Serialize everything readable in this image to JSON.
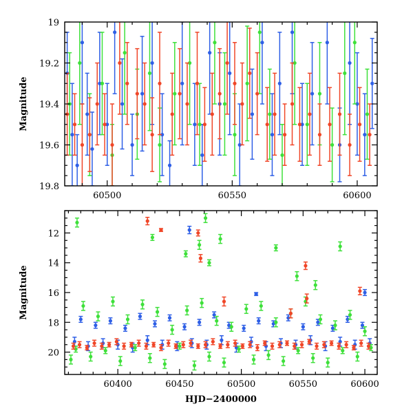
{
  "chart_data": [
    {
      "type": "scatter",
      "panel": "top",
      "title": "",
      "xlabel": "",
      "ylabel": "Magnitude",
      "xlim": [
        60483,
        60608
      ],
      "ylim": [
        19.8,
        19.0
      ],
      "y_inverted": true,
      "xticks": [
        60500,
        60550,
        60600
      ],
      "xtick_labels": [
        "60500",
        "60550",
        "60600"
      ],
      "yticks": [
        19.0,
        19.2,
        19.4,
        19.6,
        19.8
      ],
      "ytick_labels": [
        "19",
        "19.2",
        "19.4",
        "19.6",
        "19.8"
      ],
      "error_bars": true,
      "grid": false,
      "legend": "none",
      "series_colors": [
        "#2e5fe6",
        "#3ee03a",
        "#f04628"
      ],
      "series": [
        {
          "color": "#2e5fe6",
          "x": [
            60484,
            60486,
            60488,
            60490,
            60492,
            60494,
            60497,
            60500,
            60503,
            60506,
            60510,
            60514,
            60518,
            60522,
            60525,
            60530,
            60535,
            60538,
            60541,
            60545,
            60549,
            60553,
            60558,
            60562,
            60566,
            60569,
            60574,
            60578,
            60582,
            60588,
            60593,
            60597,
            60600,
            60603,
            60606
          ],
          "y": [
            19.25,
            19.55,
            19.7,
            19.1,
            19.45,
            19.62,
            19.3,
            19.5,
            19.05,
            19.4,
            19.6,
            19.35,
            19.2,
            19.55,
            19.7,
            19.3,
            19.5,
            19.65,
            19.15,
            19.4,
            19.25,
            19.6,
            19.45,
            19.1,
            19.55,
            19.3,
            19.05,
            19.5,
            19.35,
            19.1,
            19.6,
            19.2,
            19.4,
            19.55,
            19.3
          ],
          "yerr": [
            0.2,
            0.25,
            0.15,
            0.3,
            0.2,
            0.18,
            0.25,
            0.2,
            0.3,
            0.22,
            0.15,
            0.28,
            0.3,
            0.2,
            0.12,
            0.3,
            0.2,
            0.15,
            0.3,
            0.25,
            0.3,
            0.2,
            0.22,
            0.3,
            0.2,
            0.25,
            0.3,
            0.2,
            0.25,
            0.3,
            0.18,
            0.3,
            0.25,
            0.2,
            0.22
          ]
        },
        {
          "color": "#3ee03a",
          "x": [
            60485,
            60489,
            60493,
            60498,
            60502,
            60507,
            60512,
            60517,
            60521,
            60527,
            60533,
            60537,
            60543,
            60547,
            60551,
            60556,
            60561,
            60565,
            60570,
            60575,
            60580,
            60585,
            60590,
            60595,
            60599,
            60604
          ],
          "y": [
            19.4,
            19.2,
            19.55,
            19.3,
            19.65,
            19.15,
            19.45,
            19.25,
            19.6,
            19.35,
            19.2,
            19.5,
            19.1,
            19.4,
            19.55,
            19.3,
            19.05,
            19.45,
            19.65,
            19.2,
            19.5,
            19.35,
            19.6,
            19.25,
            19.1,
            19.45
          ],
          "yerr": [
            0.25,
            0.3,
            0.2,
            0.25,
            0.15,
            0.3,
            0.22,
            0.28,
            0.18,
            0.25,
            0.3,
            0.2,
            0.3,
            0.25,
            0.2,
            0.28,
            0.3,
            0.22,
            0.15,
            0.3,
            0.2,
            0.25,
            0.18,
            0.3,
            0.3,
            0.22
          ]
        },
        {
          "color": "#f04628",
          "x": [
            60484,
            60487,
            60490,
            60493,
            60496,
            60499,
            60502,
            60505,
            60508,
            60512,
            60515,
            60518,
            60521,
            60526,
            60529,
            60532,
            60536,
            60539,
            60542,
            60545,
            60548,
            60551,
            60554,
            60557,
            60560,
            60564,
            60567,
            60571,
            60574,
            60577,
            60581,
            60585,
            60589,
            60593,
            60597,
            60601,
            60605
          ],
          "y": [
            19.45,
            19.5,
            19.6,
            19.55,
            19.4,
            19.5,
            19.6,
            19.2,
            19.3,
            19.35,
            19.4,
            19.55,
            19.3,
            19.45,
            19.35,
            19.4,
            19.3,
            19.5,
            19.45,
            19.35,
            19.2,
            19.3,
            19.4,
            19.25,
            19.35,
            19.5,
            19.45,
            19.55,
            19.4,
            19.5,
            19.45,
            19.55,
            19.5,
            19.45,
            19.6,
            19.5,
            19.55
          ],
          "yerr": [
            0.2,
            0.15,
            0.2,
            0.18,
            0.2,
            0.15,
            0.2,
            0.25,
            0.2,
            0.22,
            0.2,
            0.18,
            0.25,
            0.2,
            0.22,
            0.2,
            0.25,
            0.18,
            0.2,
            0.22,
            0.25,
            0.2,
            0.2,
            0.22,
            0.2,
            0.18,
            0.2,
            0.15,
            0.2,
            0.18,
            0.2,
            0.15,
            0.18,
            0.2,
            0.15,
            0.18,
            0.15
          ]
        }
      ]
    },
    {
      "type": "scatter",
      "panel": "bottom",
      "title": "",
      "xlabel": "HJD−2400000",
      "ylabel": "Magnitude",
      "xlim": [
        60357,
        60610
      ],
      "ylim": [
        21.5,
        10.5
      ],
      "y_inverted": true,
      "xticks": [
        60400,
        60450,
        60500,
        60550,
        60600
      ],
      "xtick_labels": [
        "60400",
        "60450",
        "60500",
        "60550",
        "60600"
      ],
      "yticks": [
        12,
        14,
        16,
        18,
        20
      ],
      "ytick_labels": [
        "12",
        "14",
        "16",
        "18",
        "20"
      ],
      "error_bars": true,
      "grid": false,
      "legend": "none",
      "series": [
        {
          "color": "#2e5fe6",
          "x": [
            60365,
            60370,
            60376,
            60382,
            60388,
            60394,
            60400,
            60406,
            60412,
            60418,
            60424,
            60430,
            60436,
            60442,
            60448,
            60454,
            60460,
            60466,
            60472,
            60478,
            60484,
            60490,
            60496,
            60502,
            60508,
            60514,
            60520,
            60526,
            60532,
            60538,
            60544,
            60550,
            60556,
            60562,
            60568,
            60574,
            60580,
            60586,
            60592,
            60598,
            60604,
            60458,
            60512,
            60600
          ],
          "y": [
            19.3,
            17.8,
            19.6,
            18.2,
            19.4,
            17.9,
            19.5,
            18.4,
            19.7,
            17.6,
            19.2,
            18.1,
            19.5,
            17.7,
            19.6,
            18.3,
            19.4,
            18.0,
            19.5,
            17.5,
            19.2,
            18.2,
            19.7,
            18.4,
            19.3,
            17.9,
            19.6,
            18.1,
            19.4,
            17.7,
            19.5,
            18.3,
            19.2,
            18.0,
            19.6,
            18.4,
            19.3,
            17.8,
            19.5,
            18.2,
            19.4,
            11.8,
            16.1,
            16.0
          ],
          "yerr": [
            0.3,
            0.2,
            0.3,
            0.2,
            0.3,
            0.2,
            0.3,
            0.2,
            0.3,
            0.2,
            0.3,
            0.2,
            0.3,
            0.2,
            0.3,
            0.2,
            0.3,
            0.2,
            0.3,
            0.2,
            0.3,
            0.2,
            0.3,
            0.2,
            0.3,
            0.2,
            0.3,
            0.2,
            0.3,
            0.2,
            0.3,
            0.2,
            0.3,
            0.2,
            0.3,
            0.2,
            0.3,
            0.2,
            0.3,
            0.2,
            0.3,
            0.25,
            0.1,
            0.2
          ]
        },
        {
          "color": "#3ee03a",
          "x": [
            60362,
            60366,
            60372,
            60378,
            60384,
            60390,
            60396,
            60402,
            60408,
            60414,
            60420,
            60426,
            60432,
            60438,
            60444,
            60450,
            60456,
            60462,
            60468,
            60474,
            60480,
            60486,
            60492,
            60498,
            60504,
            60510,
            60516,
            60522,
            60528,
            60534,
            60540,
            60546,
            60552,
            60558,
            60564,
            60570,
            60576,
            60582,
            60588,
            60594,
            60600,
            60605,
            60367,
            60428,
            60455,
            60466,
            60471,
            60474,
            60483,
            60528,
            60545,
            60560,
            60580
          ],
          "y": [
            20.5,
            19.8,
            16.9,
            20.3,
            17.6,
            19.9,
            16.6,
            20.6,
            17.8,
            19.7,
            16.8,
            20.4,
            17.3,
            20.8,
            18.5,
            19.6,
            17.2,
            20.9,
            16.7,
            20.3,
            17.9,
            20.7,
            18.3,
            19.8,
            17.1,
            20.5,
            16.9,
            20.2,
            18.0,
            20.6,
            17.4,
            19.9,
            16.6,
            20.4,
            17.8,
            20.7,
            18.2,
            19.9,
            17.5,
            20.3,
            18.6,
            19.7,
            11.3,
            12.3,
            13.4,
            12.8,
            11.0,
            14.0,
            12.4,
            13.0,
            14.9,
            15.5,
            12.9
          ],
          "yerr": [
            0.3,
            0.2,
            0.3,
            0.3,
            0.3,
            0.2,
            0.3,
            0.3,
            0.3,
            0.2,
            0.3,
            0.3,
            0.3,
            0.3,
            0.3,
            0.2,
            0.3,
            0.3,
            0.3,
            0.3,
            0.3,
            0.3,
            0.3,
            0.2,
            0.3,
            0.3,
            0.3,
            0.3,
            0.3,
            0.3,
            0.3,
            0.2,
            0.3,
            0.3,
            0.3,
            0.3,
            0.3,
            0.2,
            0.3,
            0.3,
            0.3,
            0.2,
            0.3,
            0.2,
            0.2,
            0.3,
            0.3,
            0.2,
            0.3,
            0.2,
            0.3,
            0.3,
            0.3
          ]
        },
        {
          "color": "#f04628",
          "x": [
            60364,
            60369,
            60375,
            60381,
            60387,
            60393,
            60399,
            60405,
            60411,
            60417,
            60423,
            60429,
            60435,
            60441,
            60447,
            60453,
            60459,
            60465,
            60471,
            60477,
            60483,
            60489,
            60495,
            60501,
            60507,
            60513,
            60519,
            60525,
            60531,
            60537,
            60543,
            60549,
            60555,
            60561,
            60567,
            60573,
            60579,
            60585,
            60591,
            60597,
            60603,
            60424,
            60435,
            60465,
            60467,
            60486,
            60540,
            60552,
            60553,
            60596
          ],
          "y": [
            19.6,
            19.5,
            19.7,
            19.4,
            19.6,
            19.5,
            19.3,
            19.6,
            19.5,
            19.4,
            19.6,
            19.5,
            19.7,
            19.4,
            19.6,
            19.5,
            19.4,
            19.6,
            19.5,
            19.3,
            19.6,
            19.5,
            19.4,
            19.6,
            19.5,
            19.7,
            19.4,
            19.6,
            19.5,
            19.4,
            19.6,
            19.5,
            19.3,
            19.6,
            19.5,
            19.4,
            19.6,
            19.5,
            19.7,
            19.4,
            19.6,
            11.2,
            11.8,
            12.0,
            13.7,
            16.6,
            17.4,
            14.2,
            16.4,
            15.9
          ],
          "yerr": [
            0.2,
            0.2,
            0.15,
            0.2,
            0.2,
            0.15,
            0.2,
            0.2,
            0.15,
            0.2,
            0.2,
            0.15,
            0.2,
            0.2,
            0.15,
            0.2,
            0.2,
            0.15,
            0.2,
            0.2,
            0.15,
            0.2,
            0.2,
            0.15,
            0.2,
            0.2,
            0.15,
            0.2,
            0.2,
            0.15,
            0.2,
            0.2,
            0.15,
            0.2,
            0.2,
            0.15,
            0.2,
            0.2,
            0.15,
            0.2,
            0.2,
            0.25,
            0.1,
            0.2,
            0.25,
            0.3,
            0.3,
            0.25,
            0.3,
            0.25
          ]
        }
      ]
    }
  ]
}
